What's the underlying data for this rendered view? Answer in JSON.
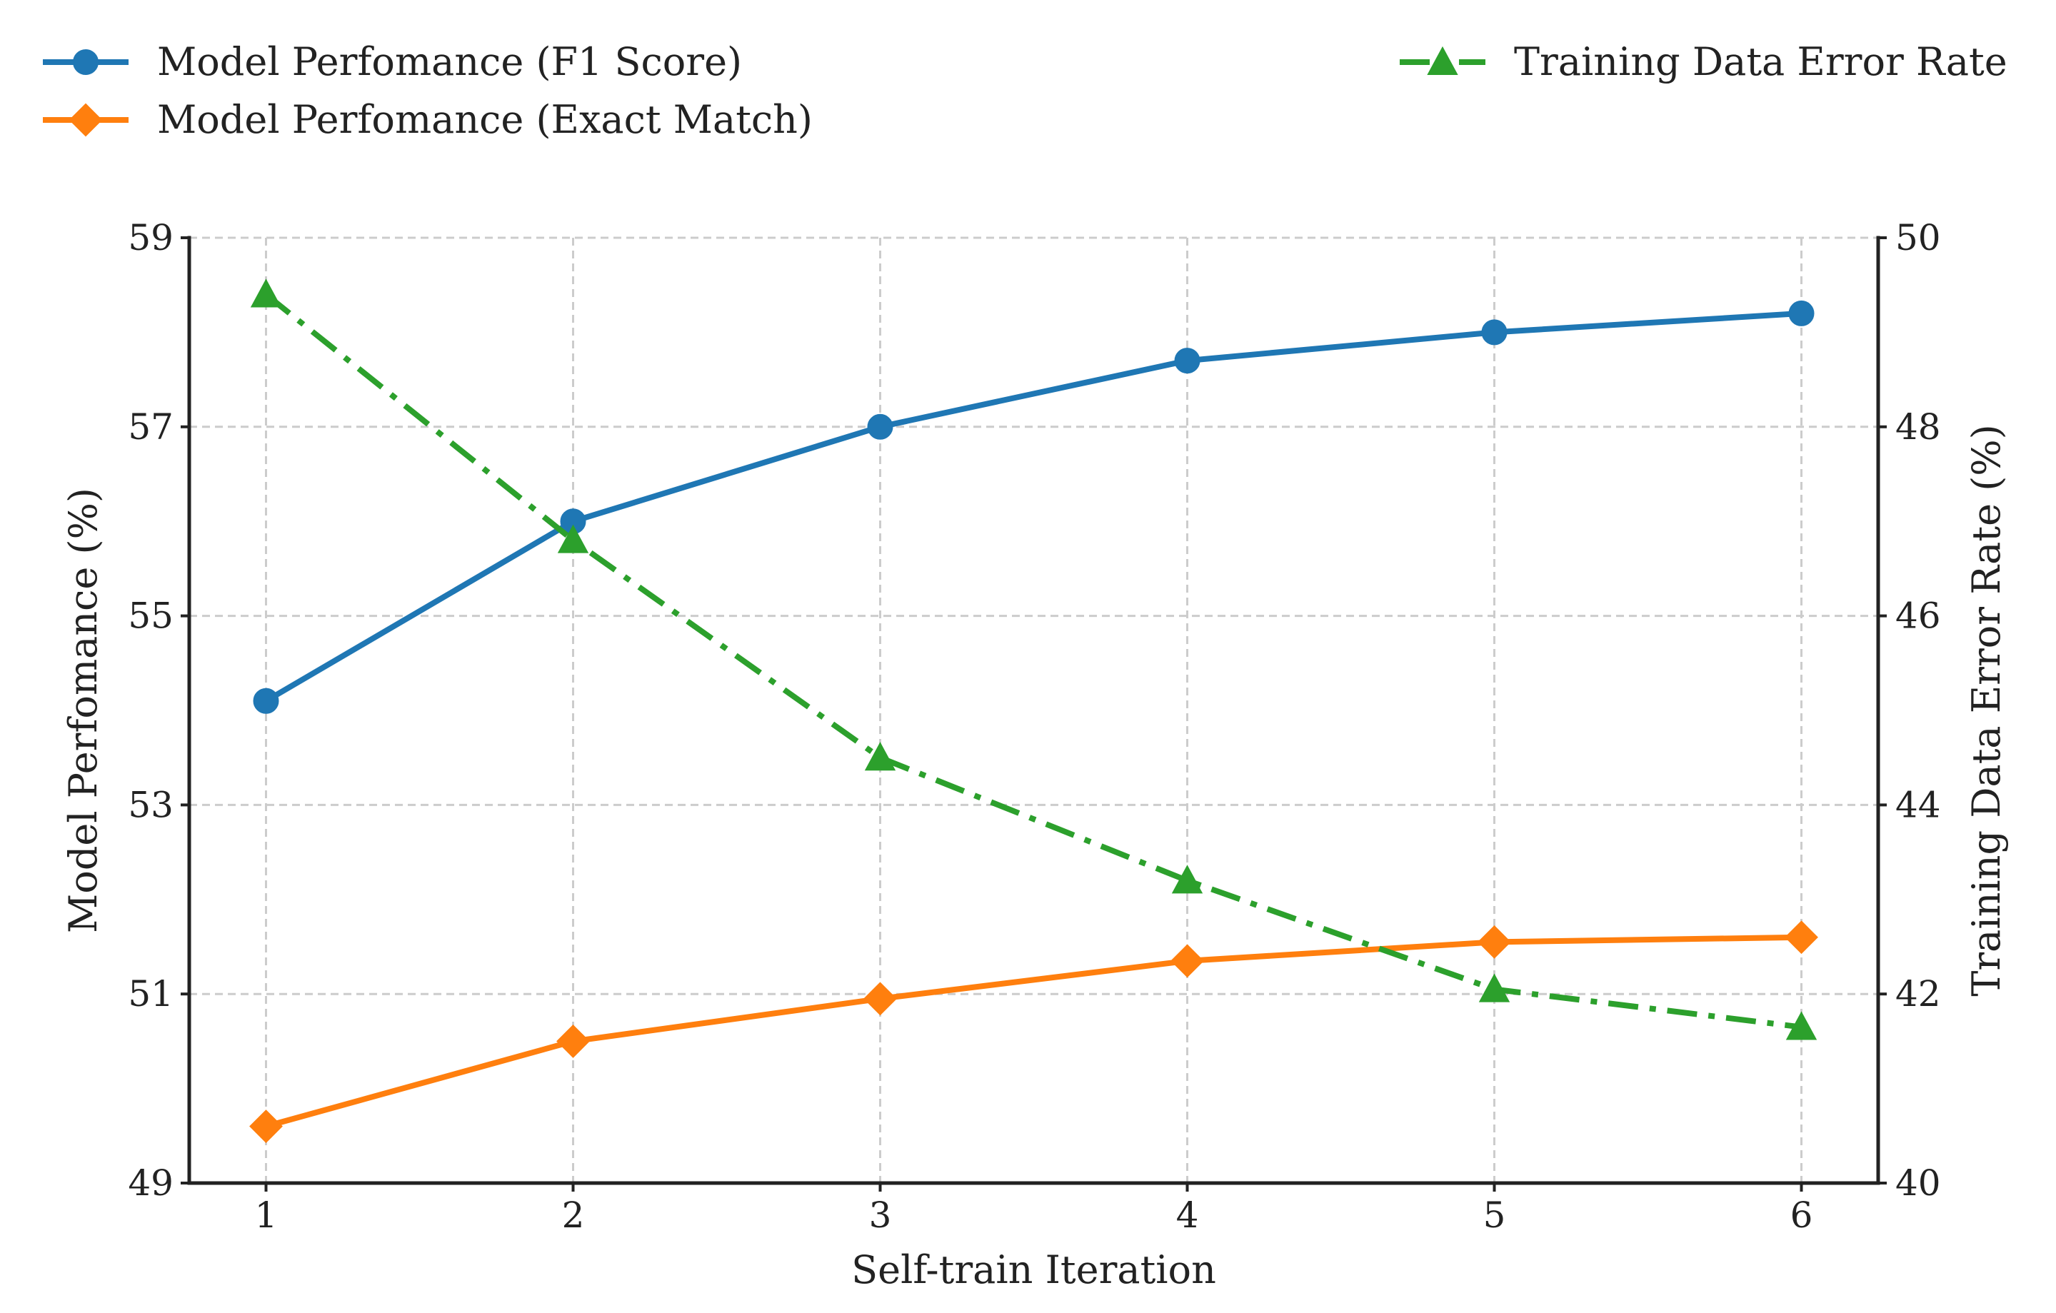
{
  "chart_data": {
    "type": "line",
    "x": [
      1,
      2,
      3,
      4,
      5,
      6
    ],
    "xlabel": "Self-train Iteration",
    "xlim": [
      0.75,
      6.25
    ],
    "xticks": [
      1,
      2,
      3,
      4,
      5,
      6
    ],
    "ylabel_left": "Model Perfomance (%)",
    "ylim_left": [
      49,
      59
    ],
    "yticks_left": [
      49,
      51,
      53,
      55,
      57,
      59
    ],
    "ylabel_right": "Training Data Error Rate (%)",
    "ylim_right": [
      40,
      50
    ],
    "yticks_right": [
      40,
      42,
      44,
      46,
      48,
      50
    ],
    "grid": true,
    "legend_placement": "top, outside plot",
    "series": [
      {
        "name": "Model Perfomance (F1 Score)",
        "axis": "left",
        "values": [
          54.1,
          56.0,
          57.0,
          57.7,
          58.0,
          58.2
        ],
        "color": "#1f77b4",
        "marker": "circle",
        "linestyle": "solid"
      },
      {
        "name": "Model Perfomance (Exact Match)",
        "axis": "left",
        "values": [
          49.6,
          50.5,
          50.95,
          51.35,
          51.55,
          51.6
        ],
        "color": "#ff7f0e",
        "marker": "diamond",
        "linestyle": "solid"
      },
      {
        "name": "Training Data Error Rate",
        "axis": "right",
        "values": [
          49.4,
          46.8,
          44.5,
          43.2,
          42.05,
          41.65
        ],
        "color": "#2ca02c",
        "marker": "triangle",
        "linestyle": "dashdot"
      }
    ]
  }
}
